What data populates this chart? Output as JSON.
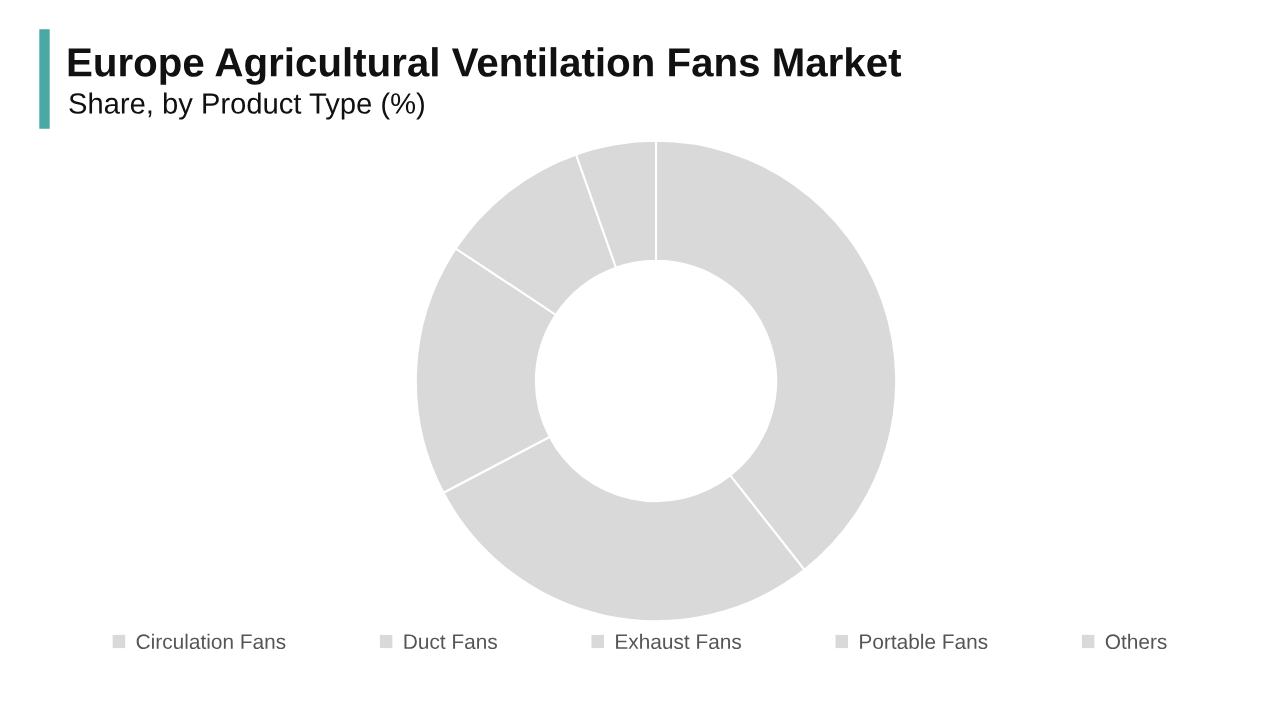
{
  "chart_data": {
    "type": "donut",
    "title": "Europe Agricultural Ventilation Fans Market",
    "subtitle": "Share, by Product Type (%)",
    "categories": [
      "Circulation Fans",
      "Duct Fans",
      "Exhaust Fans",
      "Portable Fans",
      "Others"
    ],
    "values": [
      39.4,
      27.9,
      17.0,
      10.3,
      5.4
    ],
    "colors": [
      "#d9d9d9",
      "#d9d9d9",
      "#d9d9d9",
      "#d9d9d9",
      "#d9d9d9"
    ],
    "legend": "bottom"
  }
}
